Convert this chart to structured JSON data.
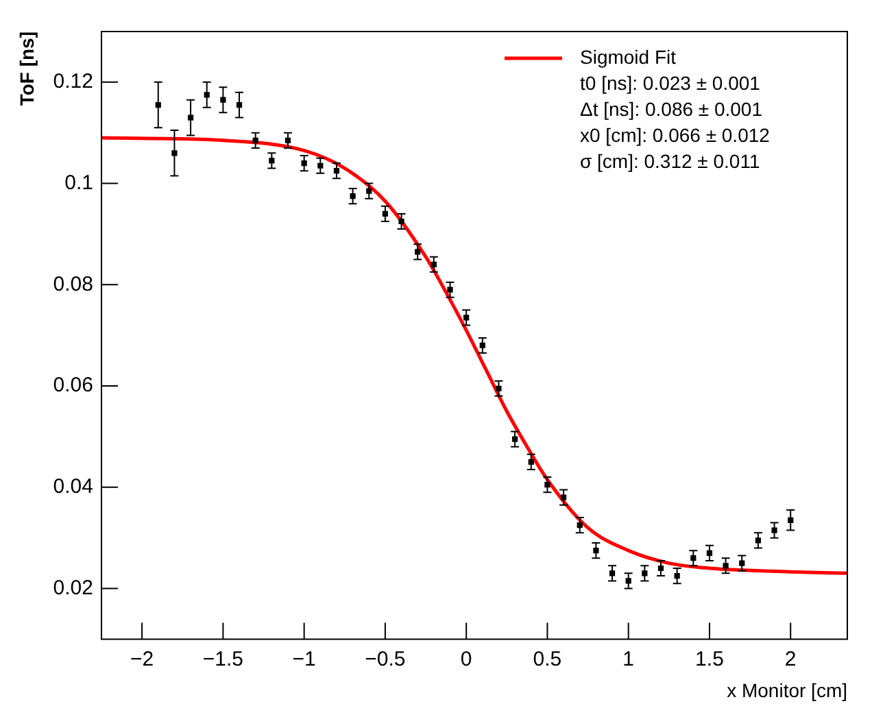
{
  "chart_data": {
    "type": "scatter",
    "xlabel": "x Monitor [cm]",
    "ylabel": "ToF [ns]",
    "xlim": [
      -2.25,
      2.35
    ],
    "ylim": [
      0.01,
      0.13
    ],
    "xticks": [
      -2,
      -1.5,
      -1,
      -0.5,
      0,
      0.5,
      1,
      1.5,
      2
    ],
    "yticks": [
      0.02,
      0.04,
      0.06,
      0.08,
      0.1,
      0.12
    ],
    "grid": false,
    "legend": "top right",
    "line_style": "solid",
    "annotations": [
      "t0 [ns]: 0.023 ± 0.001",
      "Δt [ns]: 0.086 ± 0.001",
      "x0 [cm]: 0.066 ± 0.012",
      "σ [cm]: 0.312 ± 0.011"
    ],
    "series": [
      {
        "type": "scatter",
        "color": "#000000",
        "marker": "square",
        "x": [
          -1.9,
          -1.8,
          -1.7,
          -1.6,
          -1.5,
          -1.4,
          -1.3,
          -1.2,
          -1.1,
          -1.0,
          -0.9,
          -0.8,
          -0.7,
          -0.6,
          -0.5,
          -0.4,
          -0.3,
          -0.2,
          -0.1,
          0,
          0.1,
          0.2,
          0.3,
          0.4,
          0.5,
          0.6,
          0.7,
          0.8,
          0.9,
          1.0,
          1.1,
          1.2,
          1.3,
          1.4,
          1.5,
          1.6,
          1.7,
          1.8,
          1.9,
          2.0
        ],
        "values": [
          0.1155,
          0.106,
          0.113,
          0.1175,
          0.1165,
          0.1155,
          0.1085,
          0.1045,
          0.1085,
          0.104,
          0.1035,
          0.1025,
          0.0975,
          0.0985,
          0.094,
          0.0925,
          0.0865,
          0.084,
          0.079,
          0.0735,
          0.068,
          0.0595,
          0.0495,
          0.045,
          0.0405,
          0.038,
          0.0325,
          0.0275,
          0.023,
          0.0215,
          0.023,
          0.024,
          0.0225,
          0.026,
          0.027,
          0.0245,
          0.025,
          0.0295,
          0.0315,
          0.0335
        ],
        "errors": [
          0.0045,
          0.0045,
          0.0035,
          0.0025,
          0.0025,
          0.0025,
          0.0015,
          0.0015,
          0.0015,
          0.0015,
          0.0015,
          0.0015,
          0.0015,
          0.0015,
          0.0015,
          0.0015,
          0.0015,
          0.0015,
          0.0015,
          0.0015,
          0.0015,
          0.0015,
          0.0015,
          0.0015,
          0.0015,
          0.0015,
          0.0015,
          0.0015,
          0.0015,
          0.0015,
          0.0015,
          0.0015,
          0.0015,
          0.0015,
          0.0015,
          0.0015,
          0.0015,
          0.0015,
          0.0015,
          0.002
        ]
      },
      {
        "type": "line",
        "name": "Sigmoid Fit",
        "color": "#ff0000",
        "marker": "none",
        "x": [
          -2.25,
          -1.5,
          -1,
          -0.75,
          -0.5,
          -0.25,
          -0.125,
          0,
          0.125,
          0.25,
          0.375,
          0.5,
          0.75,
          1,
          1.25,
          1.5,
          2,
          2.35
        ],
        "values": [
          0.109,
          0.1085,
          0.1065,
          0.103,
          0.0965,
          0.0855,
          0.0785,
          0.071,
          0.063,
          0.055,
          0.048,
          0.0415,
          0.032,
          0.0275,
          0.025,
          0.024,
          0.0233,
          0.023
        ]
      }
    ]
  }
}
